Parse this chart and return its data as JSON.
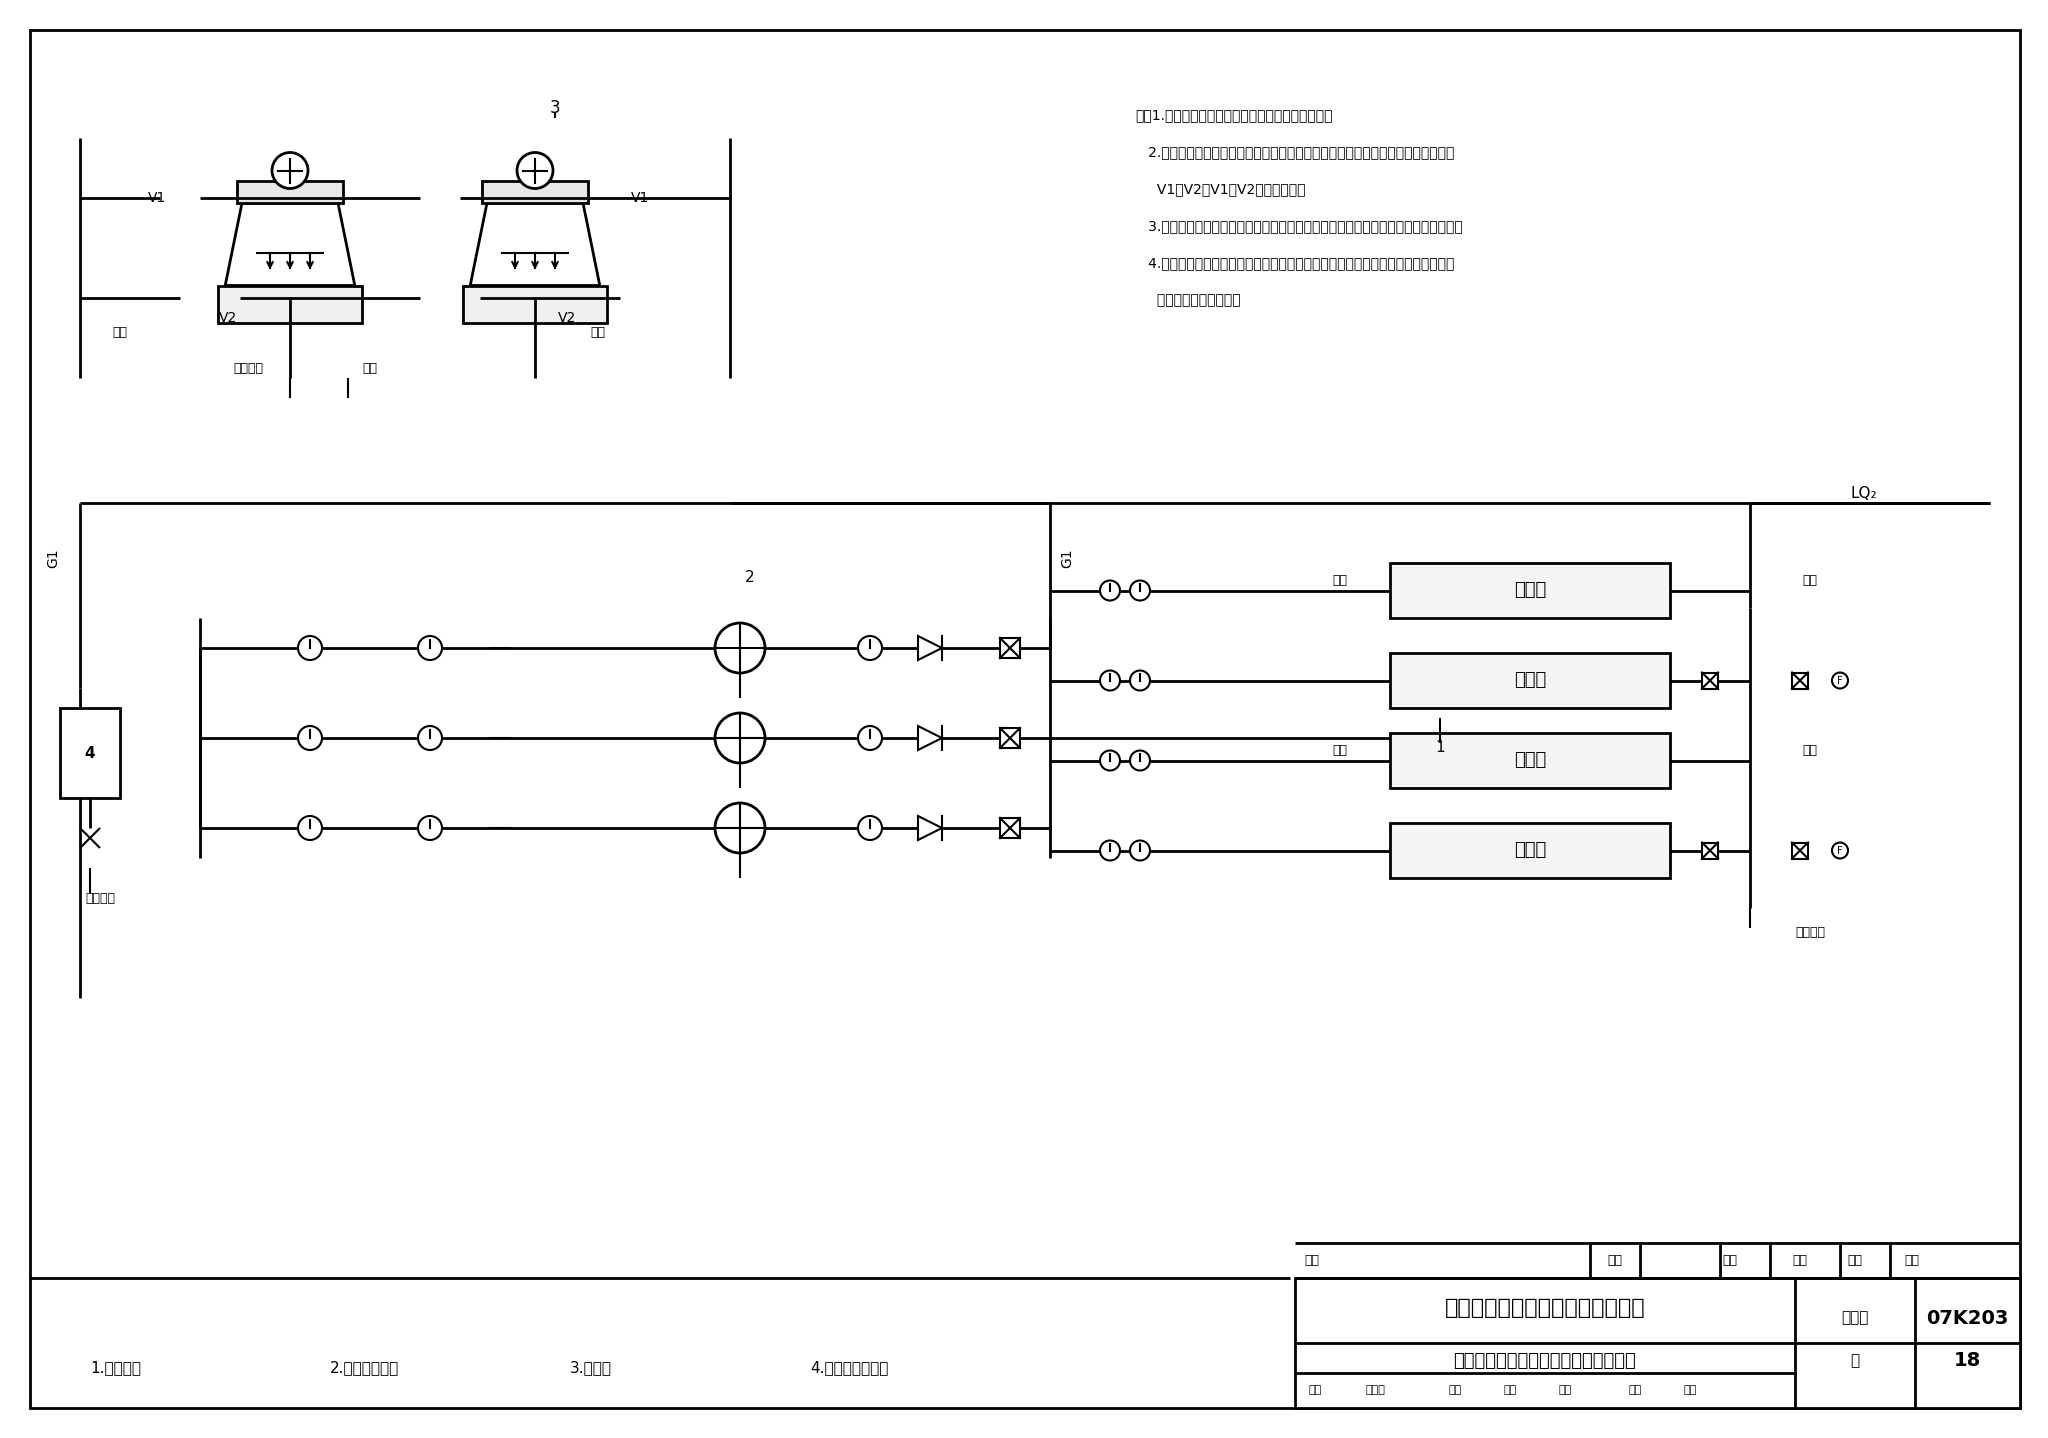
{
  "title_main": "常规空调冷却水系统原理图（三）",
  "title_sub": "水泵前置、开式冷却塔、共用集管连接",
  "fig_num_label": "图集号",
  "fig_num_value": "07K203",
  "page_label": "页",
  "page_value": "18",
  "legend_items": [
    "1.冷水机组",
    "2.冷却水循环泵",
    "3.冷却塔",
    "4.自动水处理装置"
  ],
  "notes": [
    "注：1.水泵前置适合于冷却塔安装位置较低的情况。",
    "   2.所采用的冷却塔对进水分布水压无要求且各塔风机为集中控制时，可取消电动阀",
    "     V1、V2、V1、V2应配对设置。",
    "   3.所有开关型电动阀均与相应的制冷设备联锁，所有电动阀均应具有手动关断功能。",
    "   4.本图所示冬季泄水阀位置仅为示意，具体设置位置应保证冷却水系统冬季不使用",
    "     时，室外部分能泄空。"
  ],
  "bg_color": "#ffffff",
  "line_color": "#000000",
  "line_width": 1.5
}
